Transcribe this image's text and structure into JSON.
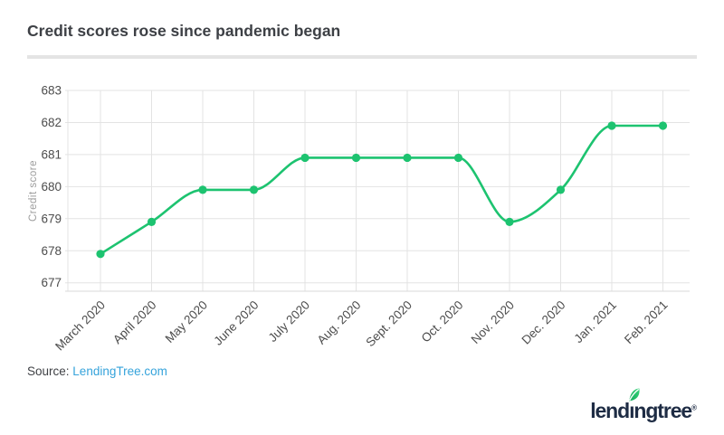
{
  "header": {
    "title": "Credit scores rose since pandemic began"
  },
  "chart_data": {
    "type": "line",
    "title": "Credit scores rose since pandemic began",
    "categories": [
      "March 2020",
      "April 2020",
      "May 2020",
      "June 2020",
      "July 2020",
      "Aug. 2020",
      "Sept. 2020",
      "Oct. 2020",
      "Nov. 2020",
      "Dec. 2020",
      "Jan. 2021",
      "Feb. 2021"
    ],
    "series": [
      {
        "name": "Credit score",
        "values": [
          677.9,
          678.9,
          679.9,
          679.9,
          680.9,
          680.9,
          680.9,
          680.9,
          678.9,
          679.9,
          681.9,
          681.9
        ]
      }
    ],
    "xlabel": "",
    "ylabel": "Credit score",
    "yticks": [
      677,
      678,
      679,
      680,
      681,
      682,
      683
    ],
    "ylim": [
      676.8,
      683.2
    ],
    "grid": true,
    "legend": "none",
    "line_color": "#1dc370",
    "marker": "circle",
    "gridline_color": "#e3e3e3",
    "axis_line_color": "#d9d9d9",
    "tick_label_color": "#4c4c4c",
    "axis_title_color": "#9c9c9c"
  },
  "source": {
    "label": "Source:",
    "link_text": "LendingTree.com",
    "link_color": "#35a3db"
  },
  "logo": {
    "name": "lendingtree",
    "pre": "lend",
    "i": "ı",
    "post": "ngtree",
    "registered": "®",
    "text_color": "#1e2c44",
    "leaf_color_dark": "#14aa5c",
    "leaf_color_light": "#36d37a"
  }
}
